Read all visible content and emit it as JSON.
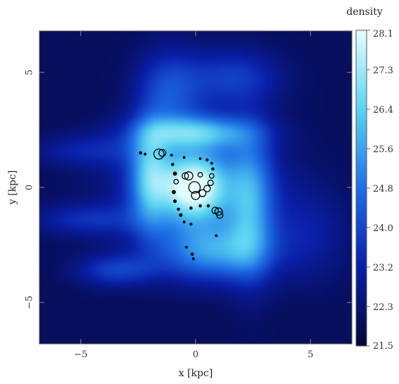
{
  "chart_data": {
    "type": "heatmap",
    "title": "",
    "xlabel": "x [kpc]",
    "ylabel": "y [kpc]",
    "xlim": [
      -6.8,
      6.8
    ],
    "ylim": [
      -6.8,
      6.8
    ],
    "xticks": [
      -5,
      0,
      5
    ],
    "yticks": [
      -5,
      0,
      5
    ],
    "colorbar": {
      "label": "density",
      "min": 21.5,
      "max": 28.1,
      "ticks": [
        "28.1",
        "27.3",
        "26.4",
        "25.6",
        "24.8",
        "24.0",
        "23.2",
        "22.3",
        "21.5"
      ],
      "colors": [
        "#05073a",
        "#0a1fa8",
        "#1e6fe6",
        "#5ad4f2",
        "#e4fdff"
      ]
    },
    "density_field": {
      "background": 22.0,
      "features": [
        {
          "name": "core",
          "x": -0.1,
          "y": 0.0,
          "sx": 0.9,
          "sy": 0.9,
          "value": 26.2
        },
        {
          "name": "inner-disk",
          "x": 0.0,
          "y": 0.1,
          "sx": 2.2,
          "sy": 1.8,
          "value": 24.8
        },
        {
          "name": "arm-upper",
          "x": 0.0,
          "y": 2.4,
          "sx": 1.8,
          "sy": 0.5,
          "value": 25.2
        },
        {
          "name": "arm-left",
          "x": -2.0,
          "y": 0.5,
          "sx": 0.6,
          "sy": 1.6,
          "value": 24.9
        },
        {
          "name": "arm-lower",
          "x": 0.8,
          "y": -2.8,
          "sx": 1.7,
          "sy": 0.9,
          "value": 25.0
        },
        {
          "name": "arm-right",
          "x": 2.4,
          "y": -0.8,
          "sx": 0.7,
          "sy": 2.2,
          "value": 24.6
        },
        {
          "name": "plume-upper-left",
          "x": -1.2,
          "y": 4.2,
          "sx": 1.0,
          "sy": 1.3,
          "value": 23.9
        },
        {
          "name": "plume-upper-right",
          "x": 1.6,
          "y": 4.8,
          "sx": 1.5,
          "sy": 0.9,
          "value": 23.7
        },
        {
          "name": "tail-lower-left",
          "x": -3.5,
          "y": -3.6,
          "sx": 1.2,
          "sy": 0.5,
          "value": 23.8
        },
        {
          "name": "tail-left",
          "x": -4.8,
          "y": -1.4,
          "sx": 1.6,
          "sy": 0.5,
          "value": 23.4
        },
        {
          "name": "filament-left-upper",
          "x": -4.8,
          "y": 1.6,
          "sx": 1.6,
          "sy": 0.5,
          "value": 23.2
        },
        {
          "name": "envelope-right",
          "x": 5.0,
          "y": -2.0,
          "sx": 1.2,
          "sy": 1.5,
          "value": 23.0
        }
      ]
    },
    "star_particles": [
      {
        "x": -2.4,
        "y": 1.5,
        "r": 0.06
      },
      {
        "x": -2.2,
        "y": 1.45,
        "r": 0.05
      },
      {
        "x": -1.6,
        "y": 1.45,
        "r": 0.22
      },
      {
        "x": -1.45,
        "y": 1.5,
        "r": 0.15
      },
      {
        "x": -1.05,
        "y": 1.4,
        "r": 0.05
      },
      {
        "x": -0.5,
        "y": 1.3,
        "r": 0.04
      },
      {
        "x": 0.2,
        "y": 1.25,
        "r": 0.04
      },
      {
        "x": 0.5,
        "y": 1.2,
        "r": 0.05
      },
      {
        "x": 0.7,
        "y": 1.05,
        "r": 0.05
      },
      {
        "x": 0.75,
        "y": 0.8,
        "r": 0.06
      },
      {
        "x": 0.7,
        "y": 0.5,
        "r": 0.1
      },
      {
        "x": 0.65,
        "y": 0.2,
        "r": 0.12
      },
      {
        "x": 0.5,
        "y": -0.05,
        "r": 0.14
      },
      {
        "x": 0.3,
        "y": -0.25,
        "r": 0.15
      },
      {
        "x": 0.0,
        "y": -0.35,
        "r": 0.18
      },
      {
        "x": -0.05,
        "y": 0.0,
        "r": 0.25
      },
      {
        "x": -0.3,
        "y": 0.5,
        "r": 0.18
      },
      {
        "x": -0.45,
        "y": 0.5,
        "r": 0.14
      },
      {
        "x": 0.2,
        "y": 0.55,
        "r": 0.1
      },
      {
        "x": -0.9,
        "y": 0.6,
        "r": 0.08
      },
      {
        "x": -1.0,
        "y": 1.0,
        "r": 0.06
      },
      {
        "x": -0.85,
        "y": 0.25,
        "r": 0.1
      },
      {
        "x": -0.95,
        "y": -0.2,
        "r": 0.08
      },
      {
        "x": -0.9,
        "y": -0.6,
        "r": 0.07
      },
      {
        "x": -0.75,
        "y": -0.95,
        "r": 0.06
      },
      {
        "x": -0.65,
        "y": -1.2,
        "r": 0.07
      },
      {
        "x": -0.5,
        "y": -1.5,
        "r": 0.05
      },
      {
        "x": -0.2,
        "y": -0.9,
        "r": 0.06
      },
      {
        "x": 0.2,
        "y": -0.8,
        "r": 0.06
      },
      {
        "x": 0.55,
        "y": -0.8,
        "r": 0.06
      },
      {
        "x": 0.85,
        "y": -1.0,
        "r": 0.14
      },
      {
        "x": 1.0,
        "y": -1.05,
        "r": 0.16
      },
      {
        "x": 1.05,
        "y": -1.2,
        "r": 0.14
      },
      {
        "x": 0.9,
        "y": -2.1,
        "r": 0.04
      },
      {
        "x": -0.4,
        "y": -2.6,
        "r": 0.05
      },
      {
        "x": -0.15,
        "y": -2.9,
        "r": 0.06
      },
      {
        "x": -0.1,
        "y": -3.1,
        "r": 0.04
      },
      {
        "x": -0.2,
        "y": -1.6,
        "r": 0.05
      }
    ]
  }
}
